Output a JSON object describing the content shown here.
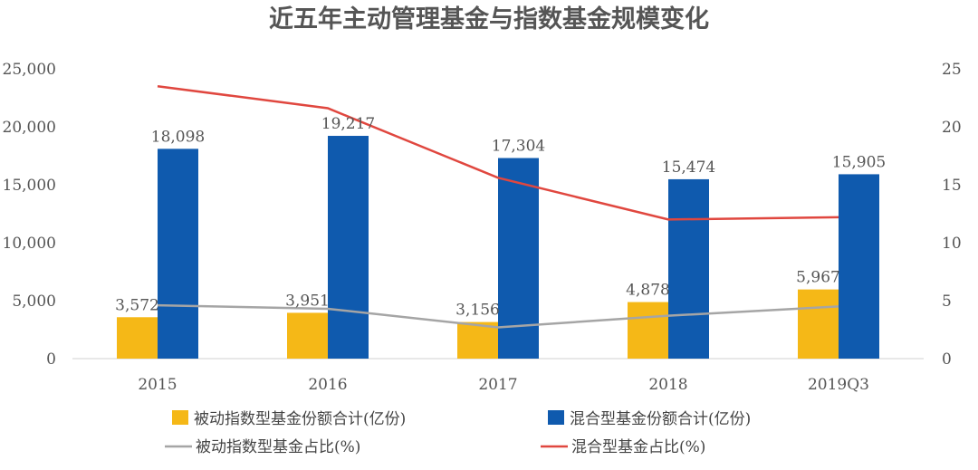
{
  "chart_data": {
    "type": "bar",
    "title": "近五年主动管理基金与指数基金规模变化",
    "categories": [
      "2015",
      "2016",
      "2017",
      "2018",
      "2019Q3"
    ],
    "left_axis": {
      "range": [
        0,
        25000
      ],
      "ticks": [
        "0",
        "5,000",
        "10,000",
        "15,000",
        "20,000",
        "25,000"
      ]
    },
    "right_axis": {
      "range": [
        0,
        25
      ],
      "ticks": [
        "0",
        "5",
        "10",
        "15",
        "20",
        "25"
      ]
    },
    "grid": false,
    "legend_position": "bottom",
    "series": [
      {
        "name": "被动指数型基金份额合计(亿份)",
        "type": "bar",
        "axis": "left",
        "color": "#F5B817",
        "values": [
          3572,
          3951,
          3156,
          4878,
          5967
        ],
        "labels": [
          "3,572",
          "3,951",
          "3,156",
          "4,878",
          "5,967"
        ]
      },
      {
        "name": "混合型基金份额合计(亿份)",
        "type": "bar",
        "axis": "left",
        "color": "#0F5AAE",
        "values": [
          18098,
          19217,
          17304,
          15474,
          15905
        ],
        "labels": [
          "18,098",
          "19,217",
          "17,304",
          "15,474",
          "15,905"
        ]
      },
      {
        "name": "被动指数型基金占比(%)",
        "type": "line",
        "axis": "right",
        "color": "#A5A5A5",
        "values": [
          4.6,
          4.3,
          2.7,
          3.7,
          4.5
        ]
      },
      {
        "name": "混合型基金占比(%)",
        "type": "line",
        "axis": "right",
        "color": "#E0473F",
        "values": [
          23.5,
          21.6,
          15.6,
          12.0,
          12.2
        ]
      }
    ]
  }
}
